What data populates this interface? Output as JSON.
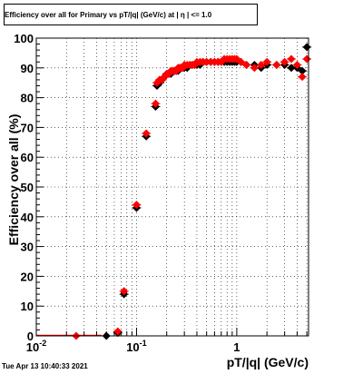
{
  "chart_data": {
    "type": "scatter",
    "title": "Efficiency over all for Primary vs pT/|q| (GeV/c) at | η | <= 1.0",
    "xlabel": "pT/|q| (GeV/c)",
    "ylabel": "Efficiency over all (%)",
    "xscale": "log",
    "xlim": [
      0.01,
      5.2
    ],
    "ylim": [
      0,
      100
    ],
    "grid": true,
    "x_tick_labels": [
      "10^-2",
      "10^-1",
      "1"
    ],
    "y_ticks": [
      0,
      10,
      20,
      30,
      40,
      50,
      60,
      70,
      80,
      90,
      100
    ],
    "series": [
      {
        "marker": "diamond",
        "color": "#000000",
        "x": [
          0.05,
          0.065,
          0.075,
          0.1,
          0.125,
          0.155,
          0.16,
          0.17,
          0.18,
          0.19,
          0.2,
          0.21,
          0.22,
          0.23,
          0.24,
          0.25,
          0.26,
          0.27,
          0.28,
          0.29,
          0.3,
          0.32,
          0.34,
          0.36,
          0.38,
          0.4,
          0.43,
          0.46,
          0.5,
          0.55,
          0.6,
          0.65,
          0.7,
          0.75,
          0.8,
          0.85,
          0.9,
          0.95,
          1.0,
          1.1,
          1.25,
          1.5,
          1.75,
          2.0,
          2.5,
          3.0,
          3.5,
          4.0,
          4.5,
          5.0
        ],
        "y": [
          0,
          1,
          14,
          43,
          67,
          77,
          84,
          85,
          86,
          87,
          88,
          88,
          88,
          89,
          89,
          89,
          89,
          90,
          90,
          90,
          90,
          90,
          91,
          91,
          91,
          91,
          91,
          92,
          92,
          92,
          92,
          92,
          92,
          92,
          92,
          92,
          92,
          92,
          92,
          92,
          91,
          91,
          90,
          91,
          91,
          91,
          90,
          90,
          89,
          97
        ]
      },
      {
        "marker": "diamond",
        "color": "#ff0000",
        "x": [
          0.025,
          0.065,
          0.075,
          0.1,
          0.125,
          0.155,
          0.16,
          0.17,
          0.18,
          0.19,
          0.2,
          0.21,
          0.22,
          0.23,
          0.24,
          0.25,
          0.26,
          0.27,
          0.28,
          0.29,
          0.3,
          0.32,
          0.34,
          0.36,
          0.38,
          0.4,
          0.43,
          0.46,
          0.5,
          0.55,
          0.6,
          0.65,
          0.7,
          0.75,
          0.8,
          0.85,
          0.9,
          0.95,
          1.0,
          1.1,
          1.25,
          1.5,
          1.75,
          2.0,
          2.5,
          3.0,
          3.5,
          4.0,
          4.5,
          5.0
        ],
        "y": [
          0,
          1.5,
          15,
          44,
          68,
          78,
          85,
          86,
          86,
          87,
          88,
          88,
          89,
          89,
          89,
          89,
          90,
          90,
          90,
          90,
          91,
          91,
          91,
          91,
          91,
          92,
          92,
          92,
          92,
          92,
          92,
          92,
          92,
          93,
          93,
          93,
          93,
          93,
          93,
          92,
          91,
          90,
          91,
          92,
          91,
          92,
          93,
          91,
          87,
          93
        ]
      }
    ]
  },
  "footer": {
    "date": "Tue Apr 13 10:40:33 2021"
  }
}
